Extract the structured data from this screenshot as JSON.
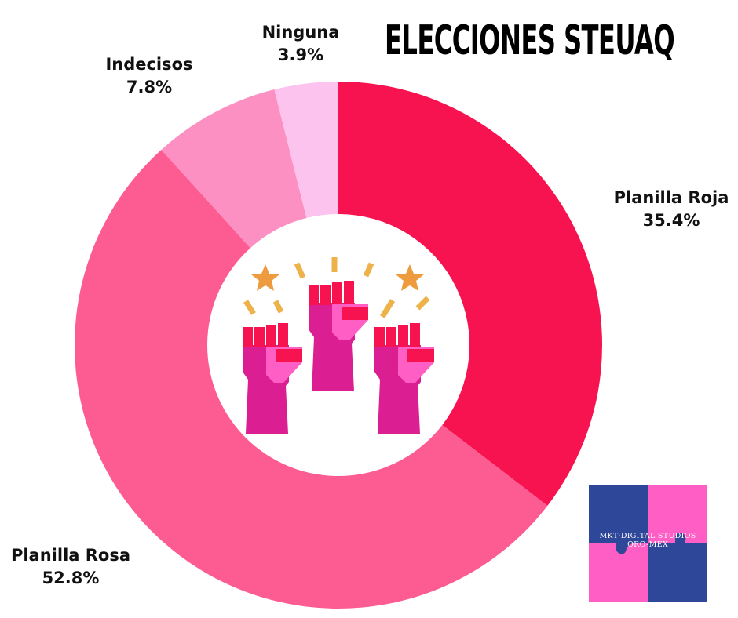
{
  "chart_data": {
    "type": "pie",
    "donut": true,
    "title": "ELECCIONES STEUAQ",
    "slices": [
      {
        "label": "Planilla Roja",
        "value": 35.4,
        "value_label": "35.4%",
        "color": "#F7134F"
      },
      {
        "label": "Planilla Rosa",
        "value": 52.8,
        "value_label": "52.8%",
        "color": "#FC5C91"
      },
      {
        "label": "Indecisos",
        "value": 7.8,
        "value_label": "7.8%",
        "color": "#FD90C2"
      },
      {
        "label": "Ninguna",
        "value": 3.9,
        "value_label": "3.9%",
        "color": "#FCC3EE"
      }
    ],
    "start": "top",
    "direction": "clockwise"
  },
  "center_icon": "raised-fists-icon",
  "logo": {
    "text_line1": "MKT·DIGITAL STUDIOS",
    "text_line2": "QRO-MEX",
    "colors": [
      "#2E4799",
      "#FF5EC4"
    ]
  }
}
